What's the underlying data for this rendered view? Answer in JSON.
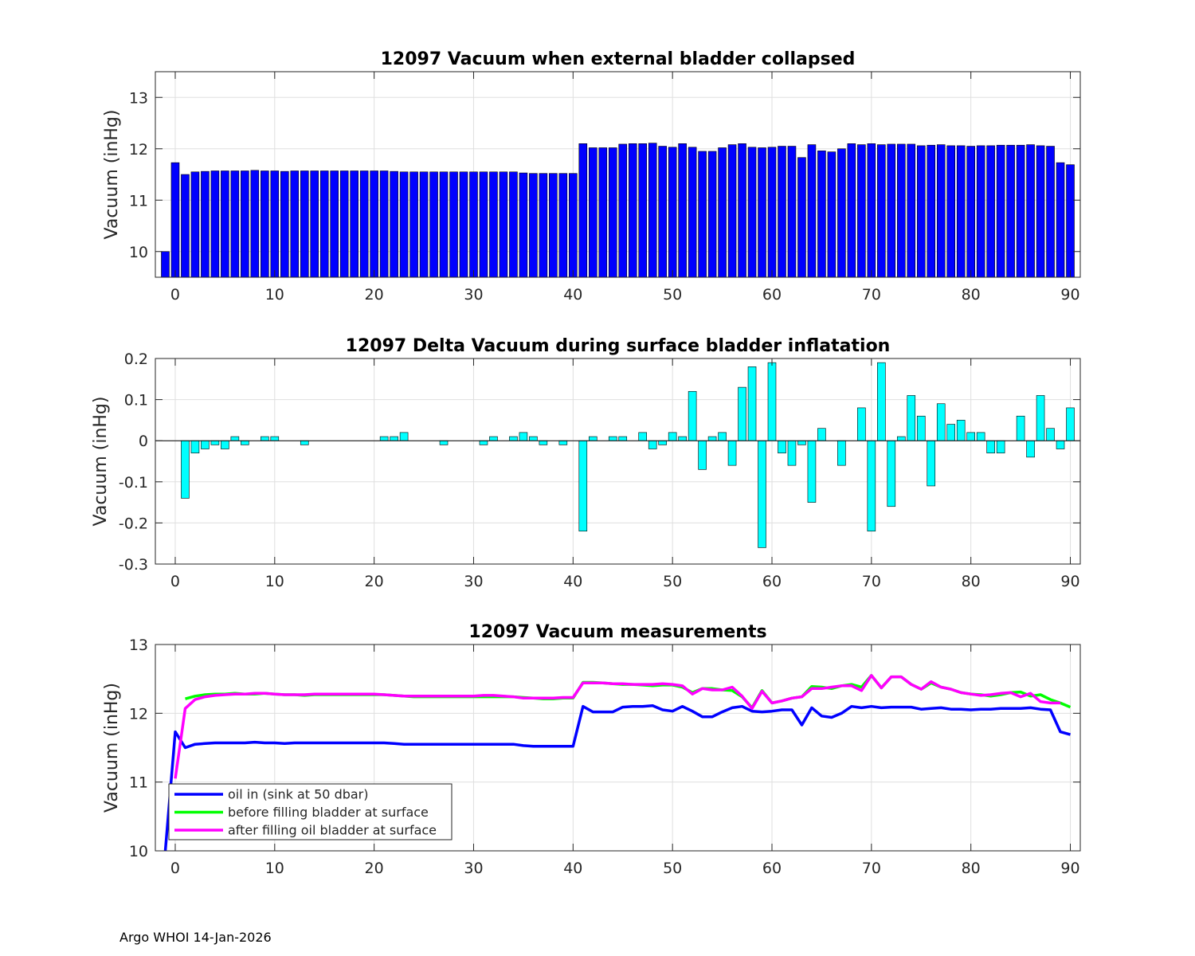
{
  "footer": "Argo WHOI 14-Jan-2026",
  "chart_data": [
    {
      "type": "bar",
      "title": "12097 Vacuum when external bladder collapsed",
      "ylabel": "Vacuum (inHg)",
      "xlabel": "",
      "xlim": [
        -2,
        91
      ],
      "ylim": [
        9.5,
        13.5
      ],
      "xticks": [
        0,
        10,
        20,
        30,
        40,
        50,
        60,
        70,
        80,
        90
      ],
      "yticks": [
        10,
        11,
        12,
        13
      ],
      "grid": true,
      "bar_color": "#0000ff",
      "x0": -1,
      "values": [
        10.0,
        11.73,
        11.5,
        11.55,
        11.56,
        11.57,
        11.57,
        11.57,
        11.57,
        11.58,
        11.57,
        11.57,
        11.56,
        11.57,
        11.57,
        11.57,
        11.57,
        11.57,
        11.57,
        11.57,
        11.57,
        11.57,
        11.57,
        11.56,
        11.55,
        11.55,
        11.55,
        11.55,
        11.55,
        11.55,
        11.55,
        11.55,
        11.55,
        11.55,
        11.55,
        11.55,
        11.53,
        11.52,
        11.52,
        11.52,
        11.52,
        11.52,
        12.1,
        12.02,
        12.02,
        12.02,
        12.09,
        12.1,
        12.1,
        12.11,
        12.05,
        12.03,
        12.1,
        12.03,
        11.95,
        11.95,
        12.02,
        12.08,
        12.1,
        12.03,
        12.02,
        12.03,
        12.05,
        12.05,
        11.83,
        12.08,
        11.96,
        11.94,
        12.0,
        12.1,
        12.08,
        12.1,
        12.08,
        12.09,
        12.09,
        12.09,
        12.06,
        12.07,
        12.08,
        12.06,
        12.06,
        12.05,
        12.06,
        12.06,
        12.07,
        12.07,
        12.07,
        12.08,
        12.06,
        12.05,
        11.73,
        11.69
      ]
    },
    {
      "type": "bar",
      "title": "12097 Delta Vacuum during surface bladder inflatation",
      "ylabel": "Vacuum (inHg)",
      "xlabel": "",
      "xlim": [
        -2,
        91
      ],
      "ylim": [
        -0.3,
        0.2
      ],
      "xticks": [
        0,
        10,
        20,
        30,
        40,
        50,
        60,
        70,
        80,
        90
      ],
      "yticks": [
        0.2,
        0.1,
        0,
        -0.1,
        -0.2,
        -0.3
      ],
      "ytick_labels": [
        "0.2",
        "0.1",
        "0",
        "-0.1",
        "-0.2",
        "-0.3"
      ],
      "grid": true,
      "bar_color": "#00ffff",
      "x0": 1,
      "values": [
        -0.14,
        -0.03,
        -0.02,
        -0.01,
        -0.02,
        0.01,
        -0.01,
        0.0,
        0.01,
        0.01,
        0.0,
        0.0,
        -0.01,
        0.0,
        0.0,
        0.0,
        0.0,
        0.0,
        0.0,
        0.0,
        0.01,
        0.01,
        0.02,
        0.0,
        0.0,
        0.0,
        -0.01,
        0.0,
        0.0,
        0.0,
        -0.01,
        0.01,
        0.0,
        0.01,
        0.02,
        0.01,
        -0.01,
        0.0,
        -0.01,
        0.0,
        -0.22,
        0.01,
        0.0,
        0.01,
        0.01,
        0.0,
        0.02,
        -0.02,
        -0.01,
        0.02,
        0.01,
        0.12,
        -0.07,
        0.01,
        0.02,
        -0.06,
        0.13,
        0.18,
        -0.26,
        0.19,
        -0.03,
        -0.06,
        -0.01,
        -0.15,
        0.03,
        0.0,
        -0.06,
        0.0,
        0.08,
        -0.22,
        0.19,
        -0.16,
        0.01,
        0.11,
        0.06,
        -0.11,
        0.09,
        0.04,
        0.05,
        0.02,
        0.02,
        -0.03,
        -0.03,
        0.0,
        0.06,
        -0.04,
        0.11,
        0.03,
        -0.02,
        0.08
      ]
    },
    {
      "type": "line",
      "title": "12097 Vacuum measurements",
      "ylabel": "Vacuum (inHg)",
      "xlabel": "",
      "xlim": [
        -2,
        91
      ],
      "ylim": [
        10,
        13
      ],
      "xticks": [
        0,
        10,
        20,
        30,
        40,
        50,
        60,
        70,
        80,
        90
      ],
      "yticks": [
        10,
        11,
        12,
        13
      ],
      "grid": true,
      "legend_position": "bottom-left",
      "series": [
        {
          "name": "oil in (sink at 50 dbar)",
          "color": "#0000ff",
          "x0": -1,
          "values": [
            10.0,
            11.73,
            11.5,
            11.55,
            11.56,
            11.57,
            11.57,
            11.57,
            11.57,
            11.58,
            11.57,
            11.57,
            11.56,
            11.57,
            11.57,
            11.57,
            11.57,
            11.57,
            11.57,
            11.57,
            11.57,
            11.57,
            11.57,
            11.56,
            11.55,
            11.55,
            11.55,
            11.55,
            11.55,
            11.55,
            11.55,
            11.55,
            11.55,
            11.55,
            11.55,
            11.55,
            11.53,
            11.52,
            11.52,
            11.52,
            11.52,
            11.52,
            12.1,
            12.02,
            12.02,
            12.02,
            12.09,
            12.1,
            12.1,
            12.11,
            12.05,
            12.03,
            12.1,
            12.03,
            11.95,
            11.95,
            12.02,
            12.08,
            12.1,
            12.03,
            12.02,
            12.03,
            12.05,
            12.05,
            11.83,
            12.08,
            11.96,
            11.94,
            12.0,
            12.1,
            12.08,
            12.1,
            12.08,
            12.09,
            12.09,
            12.09,
            12.06,
            12.07,
            12.08,
            12.06,
            12.06,
            12.05,
            12.06,
            12.06,
            12.07,
            12.07,
            12.07,
            12.08,
            12.06,
            12.05,
            11.73,
            11.69
          ]
        },
        {
          "name": "before filling bladder at surface",
          "color": "#00ff00",
          "x0": 1,
          "values": [
            12.21,
            12.25,
            12.27,
            12.28,
            12.28,
            12.29,
            12.28,
            12.28,
            12.29,
            12.28,
            12.27,
            12.27,
            12.26,
            12.27,
            12.27,
            12.27,
            12.27,
            12.27,
            12.27,
            12.27,
            12.27,
            12.26,
            12.25,
            12.24,
            12.24,
            12.24,
            12.24,
            12.24,
            12.24,
            12.24,
            12.24,
            12.24,
            12.24,
            12.24,
            12.23,
            12.22,
            12.21,
            12.21,
            12.22,
            12.22,
            12.45,
            12.45,
            12.44,
            12.43,
            12.42,
            12.42,
            12.41,
            12.4,
            12.41,
            12.41,
            12.38,
            12.3,
            12.36,
            12.36,
            12.34,
            12.33,
            12.24,
            12.08,
            12.33,
            12.15,
            12.18,
            12.22,
            12.24,
            12.39,
            12.38,
            12.36,
            12.4,
            12.42,
            12.38,
            12.55,
            12.37,
            12.53,
            12.53,
            12.42,
            12.35,
            12.44,
            12.38,
            12.35,
            12.3,
            12.28,
            12.27,
            12.25,
            12.27,
            12.3,
            12.31,
            12.25,
            12.27,
            12.2,
            12.15,
            12.09
          ]
        },
        {
          "name": "after filling oil bladder at surface",
          "color": "#ff00ff",
          "x0": 0,
          "values": [
            11.05,
            12.07,
            12.2,
            12.24,
            12.26,
            12.27,
            12.28,
            12.28,
            12.29,
            12.29,
            12.28,
            12.27,
            12.27,
            12.27,
            12.28,
            12.28,
            12.28,
            12.28,
            12.28,
            12.28,
            12.28,
            12.27,
            12.26,
            12.25,
            12.25,
            12.25,
            12.25,
            12.25,
            12.25,
            12.25,
            12.25,
            12.26,
            12.26,
            12.25,
            12.24,
            12.22,
            12.22,
            12.22,
            12.22,
            12.23,
            12.23,
            12.44,
            12.44,
            12.44,
            12.43,
            12.43,
            12.42,
            12.42,
            12.42,
            12.43,
            12.42,
            12.4,
            12.28,
            12.36,
            12.34,
            12.34,
            12.38,
            12.25,
            12.07,
            12.32,
            12.15,
            12.18,
            12.22,
            12.24,
            12.36,
            12.36,
            12.38,
            12.4,
            12.4,
            12.33,
            12.55,
            12.37,
            12.53,
            12.53,
            12.42,
            12.35,
            12.46,
            12.38,
            12.35,
            12.3,
            12.28,
            12.26,
            12.27,
            12.29,
            12.3,
            12.24,
            12.29,
            12.17,
            12.15,
            12.15
          ]
        }
      ]
    }
  ]
}
